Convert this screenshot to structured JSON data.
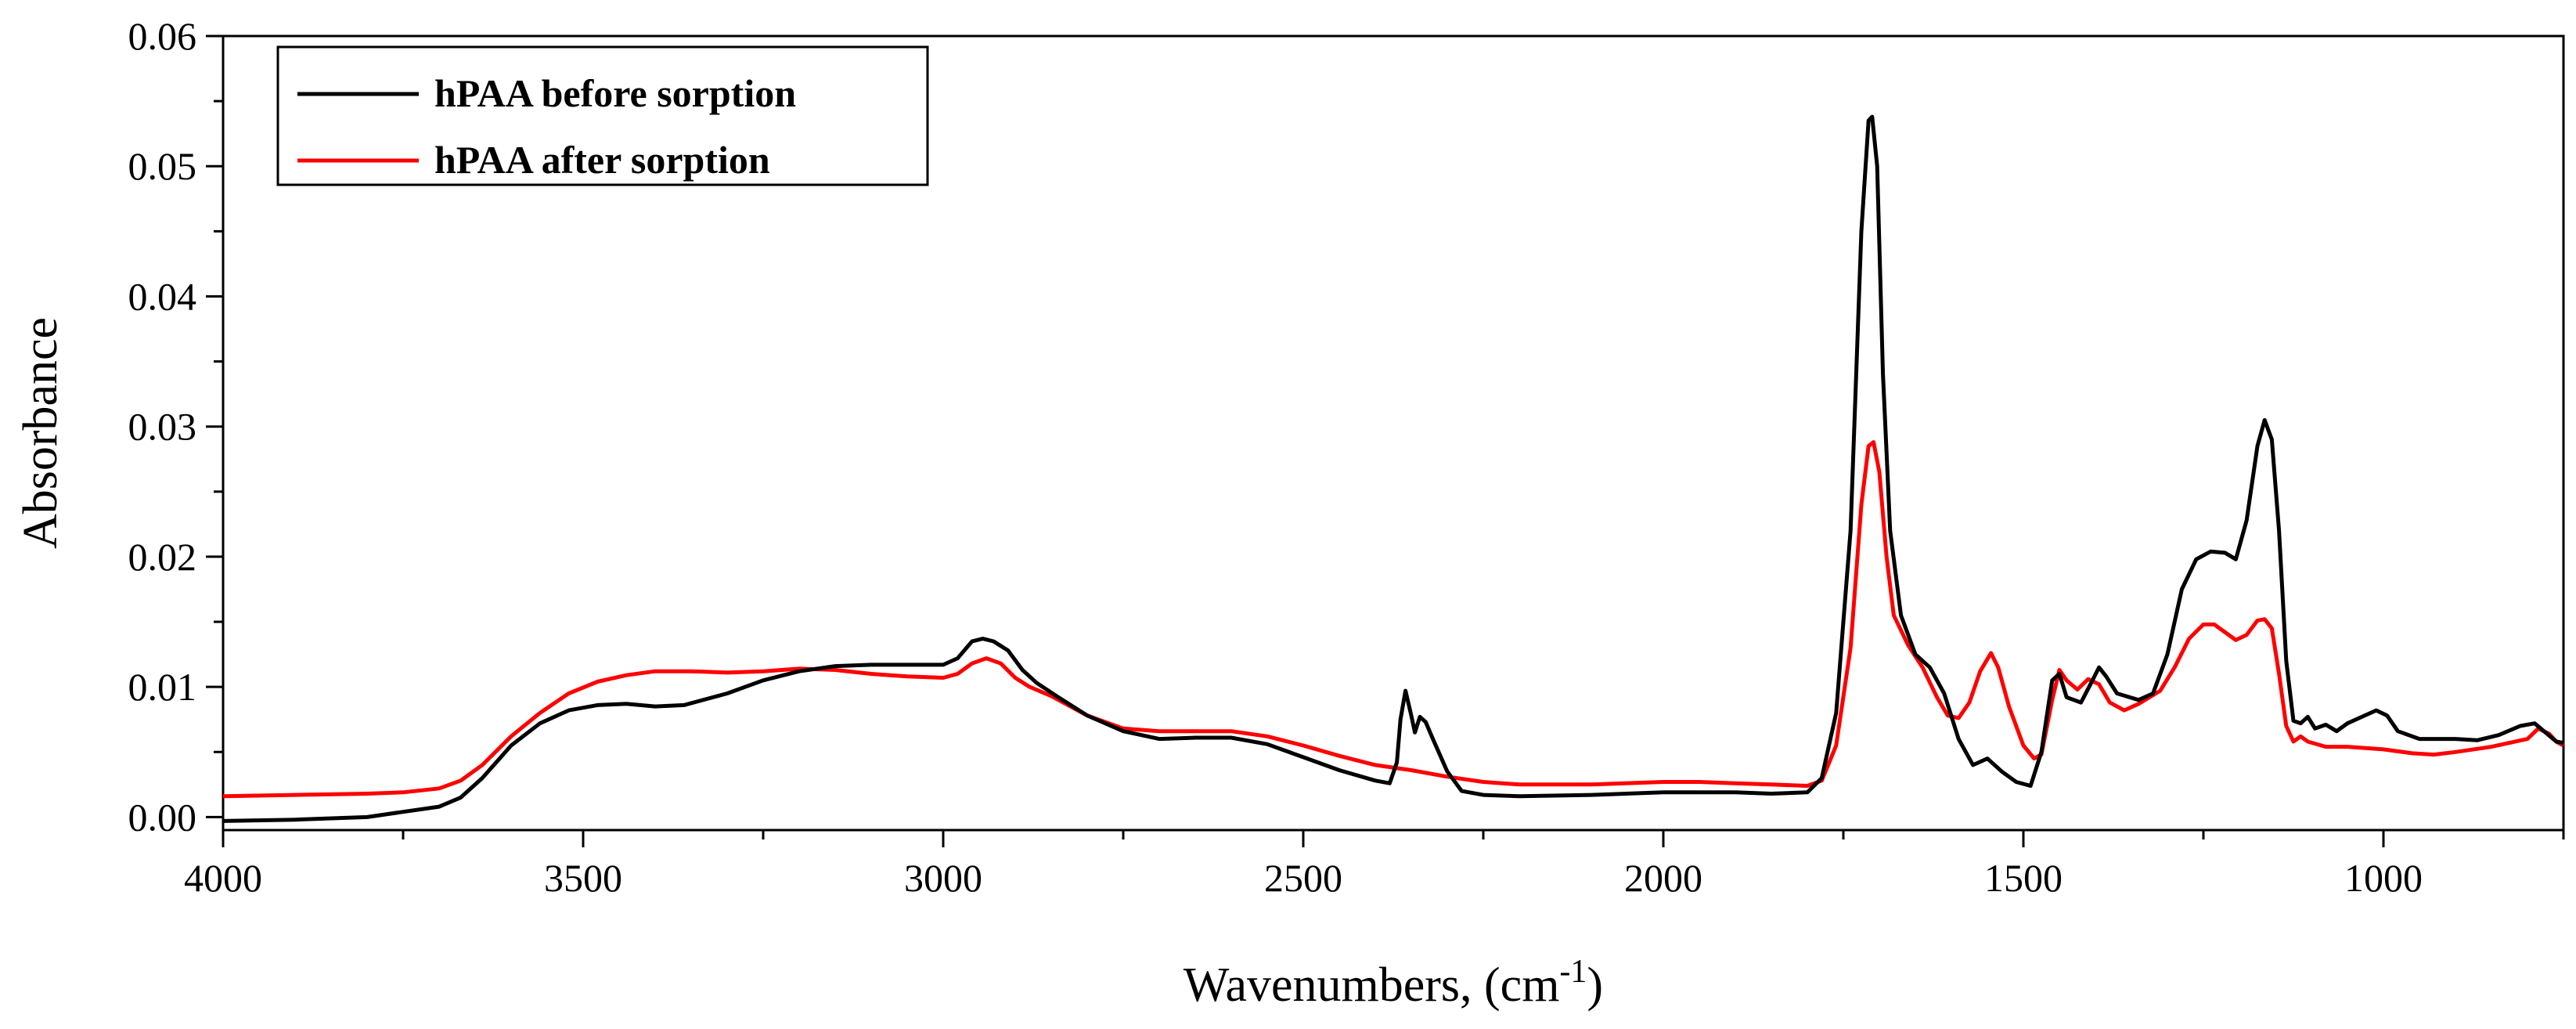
{
  "chart_data": {
    "type": "line",
    "title": "",
    "xlabel": "Wavenumbers, (cm",
    "xlabel_sup": "-1",
    "xlabel_suffix": ")",
    "ylabel": "Absorbance",
    "xlim": [
      4000,
      750
    ],
    "x_reversed": true,
    "ylim": [
      -0.001,
      0.06
    ],
    "x_ticks": [
      4000,
      3500,
      3000,
      2500,
      2000,
      1500,
      1000
    ],
    "x_tick_labels": [
      "4000",
      "3500",
      "3000",
      "2500",
      "2000",
      "1500",
      "1000"
    ],
    "y_ticks": [
      0,
      0.01,
      0.02,
      0.03,
      0.04,
      0.05,
      0.06
    ],
    "y_tick_labels": [
      "0.00",
      "0.01",
      "0.02",
      "0.03",
      "0.04",
      "0.05",
      "0.06"
    ],
    "grid": false,
    "legend": {
      "position": "top-left",
      "box": true
    },
    "series": [
      {
        "name": "hPAA before sorption",
        "color": "#000000",
        "points": [
          [
            4000,
            -0.0003
          ],
          [
            3900,
            -0.0002
          ],
          [
            3800,
            0.0
          ],
          [
            3750,
            0.0004
          ],
          [
            3700,
            0.0008
          ],
          [
            3670,
            0.0015
          ],
          [
            3640,
            0.003
          ],
          [
            3600,
            0.0055
          ],
          [
            3560,
            0.0072
          ],
          [
            3520,
            0.0082
          ],
          [
            3480,
            0.0086
          ],
          [
            3440,
            0.0087
          ],
          [
            3400,
            0.0085
          ],
          [
            3360,
            0.0086
          ],
          [
            3300,
            0.0095
          ],
          [
            3250,
            0.0105
          ],
          [
            3200,
            0.0112
          ],
          [
            3150,
            0.0116
          ],
          [
            3100,
            0.0117
          ],
          [
            3050,
            0.0117
          ],
          [
            3000,
            0.0117
          ],
          [
            2980,
            0.0122
          ],
          [
            2960,
            0.0135
          ],
          [
            2945,
            0.0137
          ],
          [
            2930,
            0.0135
          ],
          [
            2910,
            0.0128
          ],
          [
            2890,
            0.0113
          ],
          [
            2870,
            0.0103
          ],
          [
            2840,
            0.0092
          ],
          [
            2800,
            0.0078
          ],
          [
            2750,
            0.0066
          ],
          [
            2700,
            0.006
          ],
          [
            2650,
            0.0061
          ],
          [
            2600,
            0.0061
          ],
          [
            2550,
            0.0056
          ],
          [
            2500,
            0.0046
          ],
          [
            2450,
            0.0036
          ],
          [
            2400,
            0.0028
          ],
          [
            2380,
            0.0026
          ],
          [
            2370,
            0.0042
          ],
          [
            2365,
            0.0075
          ],
          [
            2358,
            0.0097
          ],
          [
            2350,
            0.0078
          ],
          [
            2345,
            0.0065
          ],
          [
            2338,
            0.0077
          ],
          [
            2330,
            0.0073
          ],
          [
            2320,
            0.006
          ],
          [
            2300,
            0.0035
          ],
          [
            2280,
            0.002
          ],
          [
            2250,
            0.0017
          ],
          [
            2200,
            0.0016
          ],
          [
            2100,
            0.0017
          ],
          [
            2000,
            0.0019
          ],
          [
            1900,
            0.0019
          ],
          [
            1850,
            0.0018
          ],
          [
            1800,
            0.0019
          ],
          [
            1780,
            0.003
          ],
          [
            1760,
            0.008
          ],
          [
            1740,
            0.022
          ],
          [
            1725,
            0.045
          ],
          [
            1715,
            0.0535
          ],
          [
            1710,
            0.0538
          ],
          [
            1703,
            0.05
          ],
          [
            1695,
            0.034
          ],
          [
            1685,
            0.022
          ],
          [
            1670,
            0.0155
          ],
          [
            1650,
            0.0125
          ],
          [
            1630,
            0.0115
          ],
          [
            1610,
            0.0095
          ],
          [
            1590,
            0.006
          ],
          [
            1570,
            0.004
          ],
          [
            1550,
            0.0045
          ],
          [
            1530,
            0.0035
          ],
          [
            1510,
            0.0027
          ],
          [
            1490,
            0.0024
          ],
          [
            1475,
            0.005
          ],
          [
            1460,
            0.0105
          ],
          [
            1450,
            0.011
          ],
          [
            1440,
            0.0092
          ],
          [
            1420,
            0.0088
          ],
          [
            1405,
            0.0104
          ],
          [
            1395,
            0.0115
          ],
          [
            1385,
            0.0108
          ],
          [
            1370,
            0.0095
          ],
          [
            1340,
            0.009
          ],
          [
            1320,
            0.0095
          ],
          [
            1300,
            0.0125
          ],
          [
            1280,
            0.0175
          ],
          [
            1260,
            0.0198
          ],
          [
            1240,
            0.0204
          ],
          [
            1220,
            0.0203
          ],
          [
            1205,
            0.0198
          ],
          [
            1190,
            0.0228
          ],
          [
            1175,
            0.0285
          ],
          [
            1165,
            0.0305
          ],
          [
            1155,
            0.029
          ],
          [
            1145,
            0.022
          ],
          [
            1135,
            0.012
          ],
          [
            1125,
            0.0074
          ],
          [
            1115,
            0.0072
          ],
          [
            1105,
            0.0077
          ],
          [
            1095,
            0.0068
          ],
          [
            1080,
            0.0071
          ],
          [
            1065,
            0.0066
          ],
          [
            1050,
            0.0072
          ],
          [
            1030,
            0.0077
          ],
          [
            1010,
            0.0082
          ],
          [
            995,
            0.0078
          ],
          [
            980,
            0.0066
          ],
          [
            950,
            0.006
          ],
          [
            900,
            0.006
          ],
          [
            870,
            0.0059
          ],
          [
            840,
            0.0063
          ],
          [
            810,
            0.007
          ],
          [
            790,
            0.0072
          ],
          [
            775,
            0.0065
          ],
          [
            760,
            0.0058
          ],
          [
            750,
            0.0057
          ]
        ]
      },
      {
        "name": "hPAA after sorption",
        "color": "#ff0000",
        "points": [
          [
            4000,
            0.0016
          ],
          [
            3900,
            0.0017
          ],
          [
            3800,
            0.0018
          ],
          [
            3750,
            0.0019
          ],
          [
            3700,
            0.0022
          ],
          [
            3670,
            0.0028
          ],
          [
            3640,
            0.004
          ],
          [
            3600,
            0.0062
          ],
          [
            3560,
            0.008
          ],
          [
            3520,
            0.0095
          ],
          [
            3480,
            0.0104
          ],
          [
            3440,
            0.0109
          ],
          [
            3400,
            0.0112
          ],
          [
            3350,
            0.0112
          ],
          [
            3300,
            0.0111
          ],
          [
            3250,
            0.0112
          ],
          [
            3200,
            0.0114
          ],
          [
            3150,
            0.0113
          ],
          [
            3100,
            0.011
          ],
          [
            3050,
            0.0108
          ],
          [
            3000,
            0.0107
          ],
          [
            2980,
            0.011
          ],
          [
            2960,
            0.0118
          ],
          [
            2940,
            0.0122
          ],
          [
            2920,
            0.0118
          ],
          [
            2900,
            0.0107
          ],
          [
            2880,
            0.01
          ],
          [
            2850,
            0.0093
          ],
          [
            2800,
            0.0078
          ],
          [
            2750,
            0.0068
          ],
          [
            2700,
            0.0066
          ],
          [
            2650,
            0.0066
          ],
          [
            2600,
            0.0066
          ],
          [
            2550,
            0.0062
          ],
          [
            2500,
            0.0055
          ],
          [
            2450,
            0.0047
          ],
          [
            2400,
            0.004
          ],
          [
            2350,
            0.0036
          ],
          [
            2300,
            0.0031
          ],
          [
            2250,
            0.0027
          ],
          [
            2200,
            0.0025
          ],
          [
            2100,
            0.0025
          ],
          [
            2000,
            0.0027
          ],
          [
            1950,
            0.0027
          ],
          [
            1900,
            0.0026
          ],
          [
            1850,
            0.0025
          ],
          [
            1800,
            0.0024
          ],
          [
            1780,
            0.0028
          ],
          [
            1760,
            0.0055
          ],
          [
            1740,
            0.013
          ],
          [
            1725,
            0.024
          ],
          [
            1715,
            0.0285
          ],
          [
            1708,
            0.0288
          ],
          [
            1700,
            0.0265
          ],
          [
            1690,
            0.02
          ],
          [
            1680,
            0.0155
          ],
          [
            1660,
            0.0132
          ],
          [
            1640,
            0.0115
          ],
          [
            1620,
            0.0092
          ],
          [
            1605,
            0.0078
          ],
          [
            1590,
            0.0076
          ],
          [
            1575,
            0.0088
          ],
          [
            1560,
            0.0112
          ],
          [
            1545,
            0.0126
          ],
          [
            1535,
            0.0115
          ],
          [
            1520,
            0.0085
          ],
          [
            1500,
            0.0055
          ],
          [
            1485,
            0.0045
          ],
          [
            1475,
            0.0048
          ],
          [
            1460,
            0.009
          ],
          [
            1450,
            0.0113
          ],
          [
            1440,
            0.0105
          ],
          [
            1425,
            0.0098
          ],
          [
            1410,
            0.0106
          ],
          [
            1395,
            0.0102
          ],
          [
            1380,
            0.0088
          ],
          [
            1360,
            0.0082
          ],
          [
            1340,
            0.0087
          ],
          [
            1310,
            0.0097
          ],
          [
            1290,
            0.0115
          ],
          [
            1270,
            0.0137
          ],
          [
            1250,
            0.0148
          ],
          [
            1235,
            0.0148
          ],
          [
            1220,
            0.0142
          ],
          [
            1205,
            0.0136
          ],
          [
            1190,
            0.014
          ],
          [
            1175,
            0.0151
          ],
          [
            1165,
            0.0152
          ],
          [
            1155,
            0.0145
          ],
          [
            1145,
            0.011
          ],
          [
            1135,
            0.007
          ],
          [
            1125,
            0.0058
          ],
          [
            1115,
            0.0062
          ],
          [
            1105,
            0.0058
          ],
          [
            1080,
            0.0054
          ],
          [
            1050,
            0.0054
          ],
          [
            1000,
            0.0052
          ],
          [
            960,
            0.0049
          ],
          [
            930,
            0.0048
          ],
          [
            900,
            0.005
          ],
          [
            850,
            0.0054
          ],
          [
            800,
            0.006
          ],
          [
            785,
            0.0068
          ],
          [
            770,
            0.0064
          ],
          [
            760,
            0.0058
          ],
          [
            750,
            0.0055
          ]
        ]
      }
    ]
  }
}
